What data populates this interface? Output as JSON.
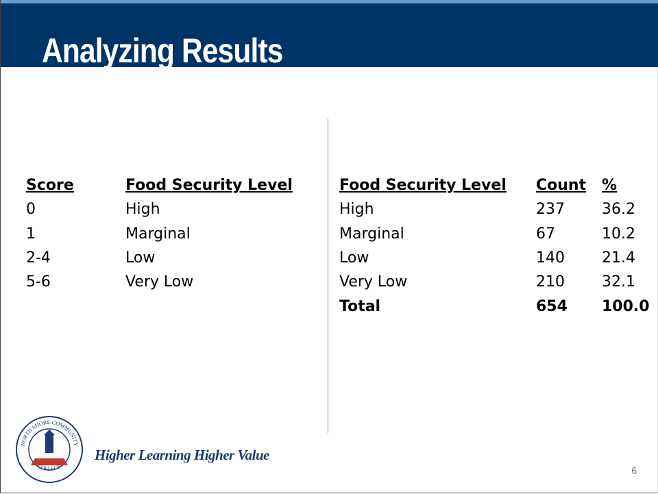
{
  "header": {
    "title": "Analyzing Results"
  },
  "left_table": {
    "columns": [
      "Score",
      "Food Security Level"
    ],
    "rows": [
      [
        "0",
        "High"
      ],
      [
        "1",
        "Marginal"
      ],
      [
        "2-4",
        "Low"
      ],
      [
        "5-6",
        "Very Low"
      ]
    ]
  },
  "right_table": {
    "columns": [
      "Food Security Level",
      "Count",
      "%"
    ],
    "rows": [
      [
        "High",
        "237",
        "36.2"
      ],
      [
        "Marginal",
        "67",
        "10.2"
      ],
      [
        "Low",
        "140",
        "21.4"
      ],
      [
        "Very Low",
        "210",
        "32.1"
      ]
    ],
    "total": [
      "Total",
      "654",
      "100.0"
    ]
  },
  "logo": {
    "text_top": "NORTH SHORE COMMUNITY",
    "text_bottom": "COLLEGE"
  },
  "footer": {
    "tagline": "Higher Learning Higher Value",
    "page_number": "6"
  }
}
